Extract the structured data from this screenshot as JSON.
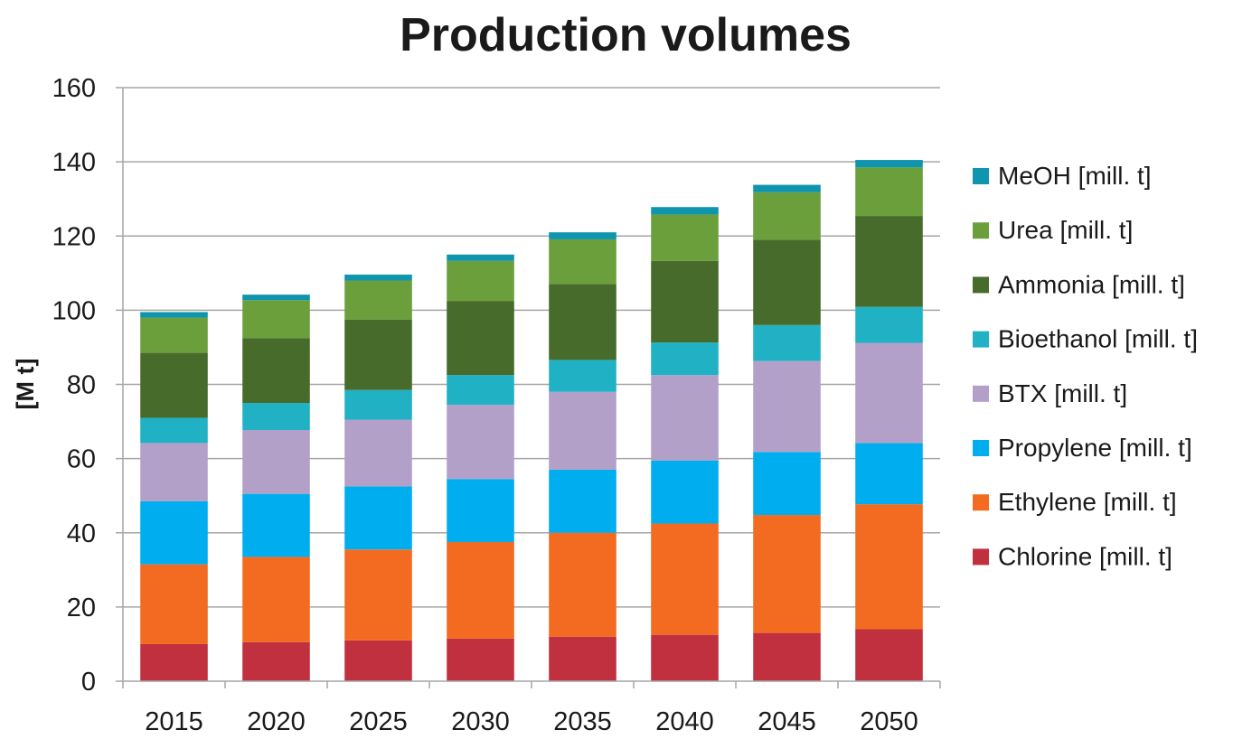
{
  "chart_data": {
    "type": "bar",
    "stacked": true,
    "title": "Production volumes",
    "xlabel": "",
    "ylabel": "[M t]",
    "ylim": [
      0,
      160
    ],
    "yticks": [
      0,
      20,
      40,
      60,
      80,
      100,
      120,
      140,
      160
    ],
    "grid": true,
    "legend_position": "right",
    "categories": [
      "2015",
      "2020",
      "2025",
      "2030",
      "2035",
      "2040",
      "2045",
      "2050"
    ],
    "series": [
      {
        "name": "Chlorine [mill. t]",
        "color": "#c0303e",
        "values": [
          10,
          10.5,
          11,
          11.5,
          12,
          12.5,
          13,
          14
        ]
      },
      {
        "name": "Ethylene [mill. t]",
        "color": "#f26b21",
        "values": [
          21.5,
          23,
          24.5,
          26,
          28,
          30,
          31.8,
          33.7
        ]
      },
      {
        "name": "Propylene [mill. t]",
        "color": "#00aeef",
        "values": [
          17,
          17,
          17,
          17,
          17,
          17,
          17,
          16.5
        ]
      },
      {
        "name": "BTX [mill. t]",
        "color": "#b3a0c9",
        "values": [
          15.7,
          17.2,
          18,
          20,
          21,
          23,
          24.5,
          27
        ]
      },
      {
        "name": "Bioethanol [mill. t]",
        "color": "#21b1c4",
        "values": [
          6.8,
          7.3,
          8,
          8,
          8.6,
          8.8,
          9.7,
          9.7
        ]
      },
      {
        "name": "Ammonia [mill. t]",
        "color": "#476b2b",
        "values": [
          17.5,
          17.5,
          19,
          20,
          20.5,
          22,
          23,
          24.5
        ]
      },
      {
        "name": "Urea [mill. t]",
        "color": "#6b9f3c",
        "values": [
          9.5,
          10.2,
          10.5,
          10.8,
          12,
          12.5,
          12.8,
          13.1
        ]
      },
      {
        "name": "MeOH [mill. t]",
        "color": "#0f95ad",
        "values": [
          1.5,
          1.5,
          1.6,
          1.7,
          1.9,
          2,
          2,
          2
        ]
      }
    ]
  }
}
